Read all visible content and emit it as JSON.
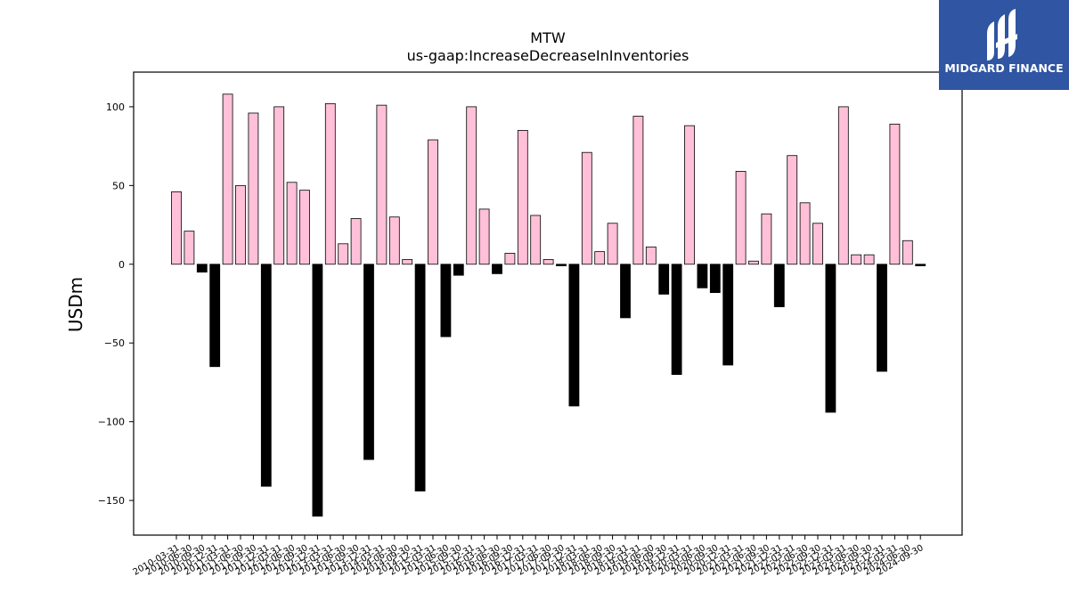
{
  "brand": {
    "name": "MIDGARD FINANCE",
    "bg_color": "#2f55a3",
    "icon": "midgard-logo-icon"
  },
  "chart_data": {
    "type": "bar",
    "title": "MTW",
    "subtitle": "us-gaap:IncreaseDecreaseInInventories",
    "xlabel": "",
    "ylabel": "USDm",
    "ylim": [
      -172,
      122
    ],
    "yticks": [
      100,
      50,
      0,
      -50,
      -100,
      -150
    ],
    "grid": false,
    "colors": {
      "positive": "#ffc0d8",
      "negative": "#000000",
      "edge": "#000000"
    },
    "categories": [
      "2010-03-31",
      "2010-06-30",
      "2010-09-30",
      "2010-12-31",
      "2011-03-31",
      "2011-06-30",
      "2011-09-30",
      "2011-12-31",
      "2012-03-31",
      "2012-06-30",
      "2012-09-30",
      "2012-12-31",
      "2013-03-31",
      "2013-06-30",
      "2013-09-30",
      "2013-12-31",
      "2014-03-31",
      "2014-06-30",
      "2014-09-30",
      "2014-12-31",
      "2015-03-31",
      "2015-06-30",
      "2015-09-30",
      "2015-12-31",
      "2016-03-31",
      "2016-06-30",
      "2016-09-30",
      "2016-12-31",
      "2017-03-31",
      "2017-06-30",
      "2017-09-30",
      "2017-12-31",
      "2018-03-31",
      "2018-06-30",
      "2018-09-30",
      "2018-12-31",
      "2019-03-31",
      "2019-06-30",
      "2019-09-30",
      "2019-12-31",
      "2020-03-31",
      "2020-06-30",
      "2020-09-30",
      "2020-12-31",
      "2021-03-31",
      "2021-06-30",
      "2021-09-30",
      "2021-12-31",
      "2022-03-31",
      "2022-06-30",
      "2022-09-30",
      "2022-12-31",
      "2023-03-31",
      "2023-06-30",
      "2023-09-30",
      "2023-12-31",
      "2024-03-31",
      "2024-06-30",
      "2024-09-30"
    ],
    "values": [
      46,
      21,
      -5,
      -65,
      108,
      50,
      96,
      -141,
      100,
      52,
      47,
      -160,
      102,
      13,
      29,
      -124,
      101,
      30,
      3,
      -144,
      79,
      -46,
      -7,
      100,
      35,
      -6,
      7,
      85,
      31,
      3,
      -1,
      -90,
      71,
      8,
      26,
      -34,
      94,
      11,
      -19,
      -70,
      88,
      -15,
      -18,
      -64,
      59,
      2,
      32,
      -27,
      69,
      39,
      26,
      -94,
      100,
      6,
      6,
      -68,
      89,
      15,
      -1
    ]
  }
}
